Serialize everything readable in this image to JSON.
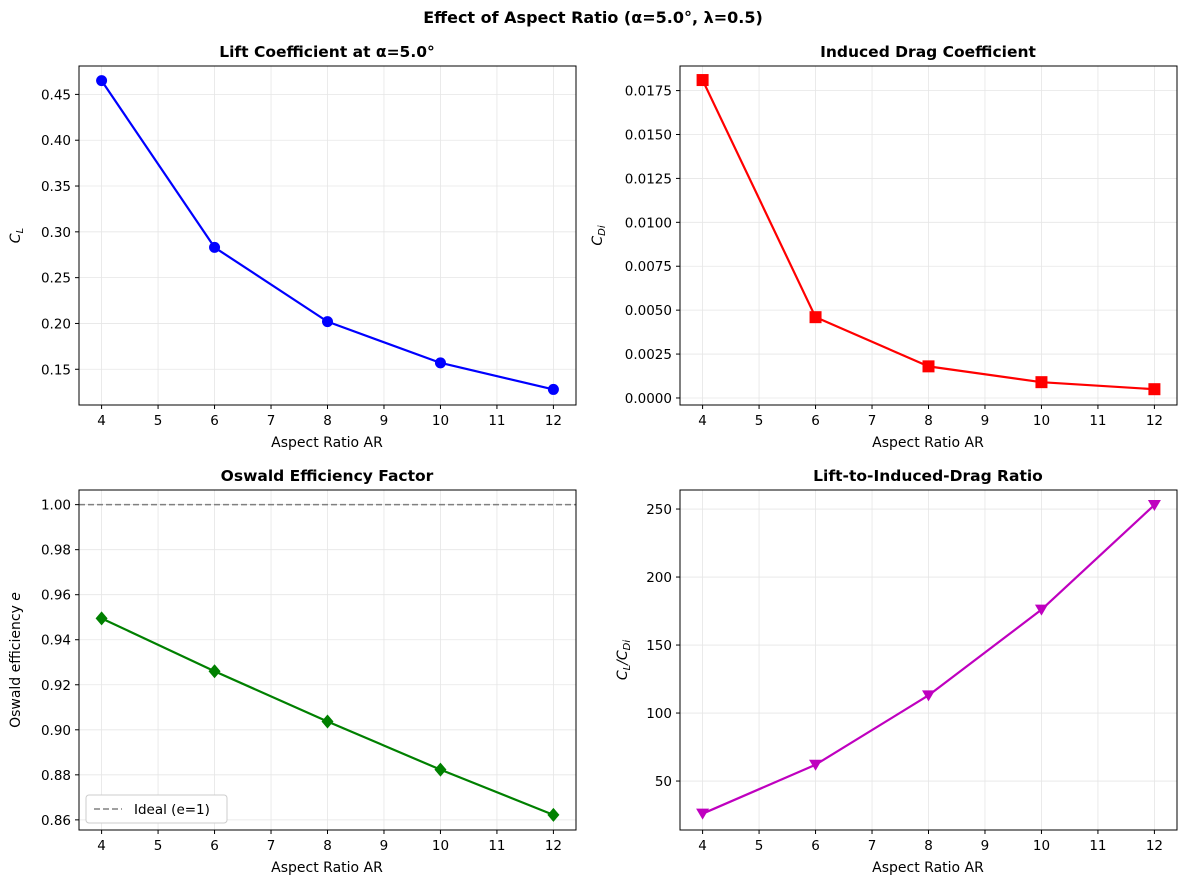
{
  "figure": {
    "suptitle": "Effect of Aspect Ratio (α=5.0°, λ=0.5)"
  },
  "chart_data": [
    {
      "type": "line",
      "title": "Lift Coefficient at α=5.0°",
      "xlabel": "Aspect Ratio AR",
      "ylabel": {
        "main": "C",
        "sub": "L"
      },
      "xlim": [
        3.6,
        12.4
      ],
      "ylim": [
        0.111,
        0.481
      ],
      "xticks": [
        4,
        5,
        6,
        7,
        8,
        9,
        10,
        11,
        12
      ],
      "yticks": [
        0.15,
        0.2,
        0.25,
        0.3,
        0.35,
        0.4,
        0.45
      ],
      "ytick_decimals": 2,
      "grid": true,
      "series": [
        {
          "x": [
            4,
            6,
            8,
            10,
            12
          ],
          "values": [
            0.465,
            0.283,
            0.202,
            0.157,
            0.128
          ],
          "color": "#0000ff",
          "marker": "circle"
        }
      ]
    },
    {
      "type": "line",
      "title": "Induced Drag Coefficient",
      "xlabel": "Aspect Ratio AR",
      "ylabel": {
        "main": "C",
        "sub": "Di"
      },
      "xlim": [
        3.6,
        12.4
      ],
      "ylim": [
        -0.0004,
        0.0189
      ],
      "xticks": [
        4,
        5,
        6,
        7,
        8,
        9,
        10,
        11,
        12
      ],
      "yticks": [
        0.0,
        0.0025,
        0.005,
        0.0075,
        0.01,
        0.0125,
        0.015,
        0.0175
      ],
      "ytick_decimals": 4,
      "grid": true,
      "series": [
        {
          "x": [
            4,
            6,
            8,
            10,
            12
          ],
          "values": [
            0.0181,
            0.0046,
            0.0018,
            0.0009,
            0.0005
          ],
          "color": "#ff0000",
          "marker": "square"
        }
      ]
    },
    {
      "type": "line",
      "title": "Oswald Efficiency Factor",
      "xlabel": "Aspect Ratio AR",
      "ylabel": {
        "main": "Oswald efficiency ",
        "italic": "e"
      },
      "xlim": [
        3.6,
        12.4
      ],
      "ylim": [
        0.8555,
        1.0065
      ],
      "xticks": [
        4,
        5,
        6,
        7,
        8,
        9,
        10,
        11,
        12
      ],
      "yticks": [
        0.86,
        0.88,
        0.9,
        0.92,
        0.94,
        0.96,
        0.98,
        1.0
      ],
      "ytick_decimals": 2,
      "grid": true,
      "reference_line": {
        "y": 1.0,
        "color": "#808080",
        "style": "dashed",
        "legend": "Ideal (e=1)"
      },
      "legend_position": "lower-left",
      "series": [
        {
          "x": [
            4,
            6,
            8,
            10,
            12
          ],
          "values": [
            0.9495,
            0.926,
            0.9037,
            0.8823,
            0.8622
          ],
          "color": "#008000",
          "marker": "diamond"
        }
      ]
    },
    {
      "type": "line",
      "title": "Lift-to-Induced-Drag Ratio",
      "xlabel": "Aspect Ratio AR",
      "ylabel": {
        "main": "C",
        "sub": "L",
        "sep": "/C",
        "sub2": "Di"
      },
      "xlim": [
        3.6,
        12.4
      ],
      "ylim": [
        14,
        264
      ],
      "xticks": [
        4,
        5,
        6,
        7,
        8,
        9,
        10,
        11,
        12
      ],
      "yticks": [
        50,
        100,
        150,
        200,
        250
      ],
      "ytick_decimals": 0,
      "grid": true,
      "series": [
        {
          "x": [
            4,
            6,
            8,
            10,
            12
          ],
          "values": [
            26,
            62,
            113,
            176,
            253
          ],
          "color": "#bf00bf",
          "marker": "triangle-down"
        }
      ]
    }
  ]
}
